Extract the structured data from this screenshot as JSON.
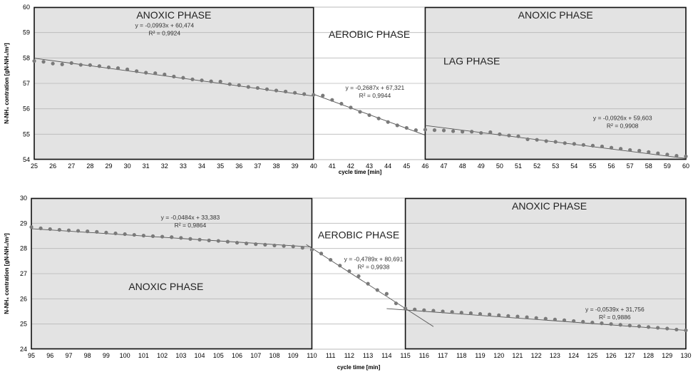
{
  "chart_data": [
    {
      "type": "scatter",
      "xlabel": "cycle time [min]",
      "ylabel": "N-NH₄ contration [gN-NH₄/m³]",
      "xlim": [
        25,
        60
      ],
      "ylim": [
        54,
        60
      ],
      "x_ticks": [
        "25",
        "26",
        "27",
        "28",
        "29",
        "30",
        "31",
        "32",
        "33",
        "34",
        "35",
        "36",
        "37",
        "38",
        "39",
        "40",
        "41",
        "42",
        "43",
        "44",
        "45",
        "46",
        "47",
        "48",
        "49",
        "50",
        "51",
        "52",
        "53",
        "54",
        "55",
        "56",
        "57",
        "58",
        "59",
        "60"
      ],
      "y_ticks": [
        "54",
        "55",
        "56",
        "57",
        "58",
        "59",
        "60"
      ],
      "grid": true,
      "phases": [
        {
          "label": "ANOXIC PHASE",
          "x0": 25,
          "x1": 40,
          "shade": "#e3e3e3",
          "border": true
        },
        {
          "label": "AEROBIC PHASE",
          "x0": 40,
          "x1": 46,
          "shade": "none",
          "border": false
        },
        {
          "label": "LAG PHASE",
          "x0": 46,
          "x1": 51,
          "shade": "#cfcfcf",
          "border": false
        },
        {
          "label": "ANOXIC PHASE",
          "x0": 46,
          "x1": 60,
          "shade": "#e3e3e3",
          "border": true
        }
      ],
      "series": [
        {
          "values": [
            [
              25,
              57.88
            ],
            [
              25.5,
              57.85
            ],
            [
              26,
              57.78
            ],
            [
              26.5,
              57.75
            ],
            [
              27,
              57.8
            ],
            [
              27.5,
              57.73
            ],
            [
              28,
              57.72
            ],
            [
              28.5,
              57.68
            ],
            [
              29,
              57.63
            ],
            [
              29.5,
              57.6
            ],
            [
              30,
              57.55
            ],
            [
              30.5,
              57.48
            ],
            [
              31,
              57.42
            ],
            [
              31.5,
              57.4
            ],
            [
              32,
              57.35
            ],
            [
              32.5,
              57.27
            ],
            [
              33,
              57.22
            ],
            [
              33.5,
              57.16
            ],
            [
              34,
              57.12
            ],
            [
              34.5,
              57.08
            ],
            [
              35,
              57.07
            ],
            [
              35.5,
              56.97
            ],
            [
              36,
              56.93
            ],
            [
              36.5,
              56.86
            ],
            [
              37,
              56.82
            ],
            [
              37.5,
              56.77
            ],
            [
              38,
              56.72
            ],
            [
              38.5,
              56.68
            ],
            [
              39,
              56.63
            ],
            [
              39.5,
              56.58
            ],
            [
              40,
              56.55
            ],
            [
              40.5,
              56.52
            ],
            [
              41,
              56.35
            ],
            [
              41.5,
              56.2
            ],
            [
              42,
              56.05
            ],
            [
              42.5,
              55.88
            ],
            [
              43,
              55.75
            ],
            [
              43.5,
              55.62
            ],
            [
              44,
              55.48
            ],
            [
              44.5,
              55.35
            ],
            [
              45,
              55.25
            ],
            [
              45.5,
              55.16
            ],
            [
              46,
              55.18
            ],
            [
              46.5,
              55.16
            ],
            [
              47,
              55.15
            ],
            [
              47.5,
              55.12
            ],
            [
              48,
              55.1
            ],
            [
              48.5,
              55.1
            ],
            [
              49,
              55.05
            ],
            [
              49.5,
              55.08
            ],
            [
              50,
              55.0
            ],
            [
              50.5,
              54.95
            ],
            [
              51,
              54.92
            ],
            [
              51.5,
              54.8
            ],
            [
              52,
              54.78
            ],
            [
              52.5,
              54.73
            ],
            [
              53,
              54.7
            ],
            [
              53.5,
              54.65
            ],
            [
              54,
              54.62
            ],
            [
              54.5,
              54.58
            ],
            [
              55,
              54.55
            ],
            [
              55.5,
              54.52
            ],
            [
              56,
              54.47
            ],
            [
              56.5,
              54.43
            ],
            [
              57,
              54.38
            ],
            [
              57.5,
              54.35
            ],
            [
              58,
              54.3
            ],
            [
              58.5,
              54.25
            ],
            [
              59,
              54.2
            ],
            [
              59.5,
              54.15
            ],
            [
              60,
              54.13
            ]
          ]
        }
      ],
      "trendlines": [
        {
          "x0": 25,
          "x1": 40,
          "slope": -0.0993,
          "intercept": 60.474,
          "equation": "y = -0,0993x + 60,474",
          "r2": "R² = 0,9924",
          "label_x": 32,
          "label_y": 59.2
        },
        {
          "x0": 40,
          "x1": 46,
          "slope": -0.2687,
          "intercept": 67.321,
          "equation": "y = -0,2687x + 67,321",
          "r2": "R² = 0,9944",
          "label_x": 43.3,
          "label_y": 56.75
        },
        {
          "x0": 46,
          "x1": 60,
          "slope": -0.0926,
          "intercept": 59.603,
          "equation": "y = -0,0926x + 59,603",
          "r2": "R² = 0,9908",
          "label_x": 56.6,
          "label_y": 55.55
        }
      ]
    },
    {
      "type": "scatter",
      "xlabel": "cycle time [min]",
      "ylabel": "N-NH₄ contration [gN-NH₄/m³]",
      "xlim": [
        95,
        130
      ],
      "ylim": [
        24,
        30
      ],
      "x_ticks": [
        "95",
        "96",
        "97",
        "98",
        "99",
        "100",
        "101",
        "102",
        "103",
        "104",
        "105",
        "106",
        "107",
        "108",
        "109",
        "110",
        "111",
        "112",
        "113",
        "114",
        "115",
        "116",
        "117",
        "118",
        "119",
        "120",
        "121",
        "122",
        "123",
        "124",
        "125",
        "126",
        "127",
        "128",
        "129",
        "130"
      ],
      "y_ticks": [
        "24",
        "25",
        "26",
        "27",
        "28",
        "29",
        "30"
      ],
      "grid": true,
      "phases": [
        {
          "label": "ANOXIC PHASE",
          "x0": 95,
          "x1": 110,
          "shade": "#e3e3e3",
          "border": true
        },
        {
          "label": "AEROBIC PHASE",
          "x0": 110,
          "x1": 115,
          "shade": "none",
          "border": false
        },
        {
          "label": "ANOXIC PHASE",
          "x0": 115,
          "x1": 130,
          "shade": "#e3e3e3",
          "border": true
        }
      ],
      "series": [
        {
          "values": [
            [
              95,
              28.85
            ],
            [
              95.5,
              28.8
            ],
            [
              96,
              28.77
            ],
            [
              96.5,
              28.74
            ],
            [
              97,
              28.72
            ],
            [
              97.5,
              28.7
            ],
            [
              98,
              28.68
            ],
            [
              98.5,
              28.66
            ],
            [
              99,
              28.63
            ],
            [
              99.5,
              28.6
            ],
            [
              100,
              28.57
            ],
            [
              100.5,
              28.54
            ],
            [
              101,
              28.51
            ],
            [
              101.5,
              28.49
            ],
            [
              102,
              28.47
            ],
            [
              102.5,
              28.45
            ],
            [
              103,
              28.42
            ],
            [
              103.5,
              28.38
            ],
            [
              104,
              28.35
            ],
            [
              104.5,
              28.32
            ],
            [
              105,
              28.3
            ],
            [
              105.5,
              28.27
            ],
            [
              106,
              28.23
            ],
            [
              106.5,
              28.2
            ],
            [
              107,
              28.17
            ],
            [
              107.5,
              28.15
            ],
            [
              108,
              28.12
            ],
            [
              108.5,
              28.1
            ],
            [
              109,
              28.08
            ],
            [
              109.5,
              28.03
            ],
            [
              110,
              27.95
            ],
            [
              110.5,
              27.8
            ],
            [
              111,
              27.55
            ],
            [
              111.5,
              27.32
            ],
            [
              112,
              27.1
            ],
            [
              112.5,
              26.9
            ],
            [
              113,
              26.6
            ],
            [
              113.5,
              26.35
            ],
            [
              114,
              26.2
            ],
            [
              114.5,
              25.82
            ],
            [
              115,
              25.62
            ],
            [
              115.5,
              25.58
            ],
            [
              116,
              25.55
            ],
            [
              116.5,
              25.53
            ],
            [
              117,
              25.5
            ],
            [
              117.5,
              25.48
            ],
            [
              118,
              25.45
            ],
            [
              118.5,
              25.43
            ],
            [
              119,
              25.4
            ],
            [
              119.5,
              25.38
            ],
            [
              120,
              25.35
            ],
            [
              120.5,
              25.32
            ],
            [
              121,
              25.3
            ],
            [
              121.5,
              25.27
            ],
            [
              122,
              25.24
            ],
            [
              122.5,
              25.21
            ],
            [
              123,
              25.18
            ],
            [
              123.5,
              25.15
            ],
            [
              124,
              25.12
            ],
            [
              124.5,
              25.09
            ],
            [
              125,
              25.06
            ],
            [
              125.5,
              25.03
            ],
            [
              126,
              25.0
            ],
            [
              126.5,
              24.97
            ],
            [
              127,
              24.94
            ],
            [
              127.5,
              24.91
            ],
            [
              128,
              24.88
            ],
            [
              128.5,
              24.85
            ],
            [
              129,
              24.82
            ],
            [
              129.5,
              24.78
            ],
            [
              130,
              24.75
            ]
          ]
        }
      ],
      "trendlines": [
        {
          "x0": 95,
          "x1": 110,
          "slope": -0.0484,
          "intercept": 33.383,
          "equation": "y = -0,0484x + 33,383",
          "r2": "R² = 0,9864",
          "label_x": 103.5,
          "label_y": 29.15
        },
        {
          "x0": 109.7,
          "x1": 116.5,
          "slope": -0.4789,
          "intercept": 80.691,
          "equation": "y = -0,4789x + 80,691",
          "r2": "R² = 0,9938",
          "label_x": 113.3,
          "label_y": 27.5
        },
        {
          "x0": 114,
          "x1": 130,
          "slope": -0.0539,
          "intercept": 31.756,
          "equation": "y = -0,0539x + 31,756",
          "r2": "R² = 0,9886",
          "label_x": 126.2,
          "label_y": 25.5
        }
      ]
    }
  ]
}
